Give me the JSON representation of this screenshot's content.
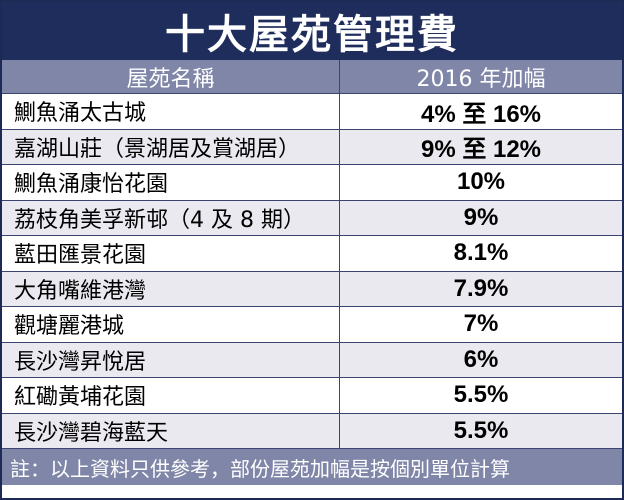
{
  "title": "十大屋苑管理費",
  "header": {
    "col_name": "屋苑名稱",
    "col_rate": "2016 年加幅"
  },
  "rows": [
    {
      "name": "鰂魚涌太古城",
      "rate": "4% 至 16%"
    },
    {
      "name": "嘉湖山莊（景湖居及賞湖居）",
      "rate": "9% 至 12%"
    },
    {
      "name": "鰂魚涌康怡花園",
      "rate": "10%"
    },
    {
      "name": "荔枝角美孚新邨（4 及 8 期）",
      "rate": "9%"
    },
    {
      "name": "藍田匯景花園",
      "rate": "8.1%"
    },
    {
      "name": "大角嘴維港灣",
      "rate": "7.9%"
    },
    {
      "name": "觀塘麗港城",
      "rate": "7%"
    },
    {
      "name": "長沙灣昇悅居",
      "rate": "6%"
    },
    {
      "name": "紅磡黃埔花園",
      "rate": "5.5%"
    },
    {
      "name": "長沙灣碧海藍天",
      "rate": "5.5%"
    }
  ],
  "note": "註：以上資料只供參考，部份屋苑加幅是按個別單位計算",
  "colors": {
    "title_bg": "#1f2d5d",
    "header_bg": "#7f86a8",
    "stripe": "#e9e9ef",
    "border": "#3a4470"
  }
}
